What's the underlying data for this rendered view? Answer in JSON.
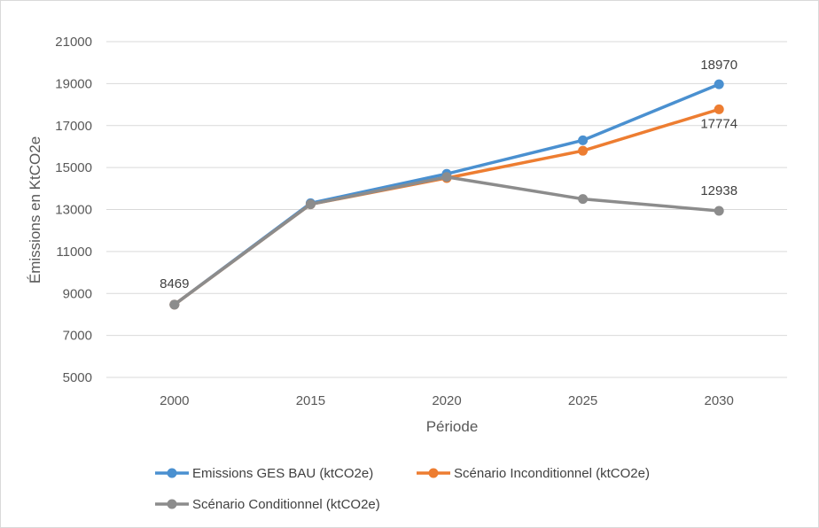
{
  "chart_data": {
    "type": "line",
    "xlabel": "Période",
    "ylabel": "Émissions en KtCO2e",
    "categories": [
      "2000",
      "2015",
      "2020",
      "2025",
      "2030"
    ],
    "ylim": [
      5000,
      21000
    ],
    "yticks": [
      5000,
      7000,
      9000,
      11000,
      13000,
      15000,
      17000,
      19000,
      21000
    ],
    "grid": true,
    "legend_position": "bottom",
    "series": [
      {
        "name": "Emissions GES BAU (ktCO2e)",
        "color": "#4a90d0",
        "values": [
          8469,
          13300,
          14700,
          16300,
          18970
        ]
      },
      {
        "name": "Scénario Inconditionnel (ktCO2e)",
        "color": "#ed7d31",
        "values": [
          8469,
          13250,
          14500,
          15800,
          17774
        ]
      },
      {
        "name": "Scénario Conditionnel (ktCO2e)",
        "color": "#8c8c8c",
        "values": [
          8469,
          13250,
          14550,
          13500,
          12938
        ]
      }
    ],
    "data_labels": [
      {
        "series": 0,
        "index": 4,
        "text": "18970"
      },
      {
        "series": 1,
        "index": 4,
        "text": "17774"
      },
      {
        "series": 2,
        "index": 4,
        "text": "12938"
      },
      {
        "series": 2,
        "index": 0,
        "text": "8469"
      }
    ]
  }
}
